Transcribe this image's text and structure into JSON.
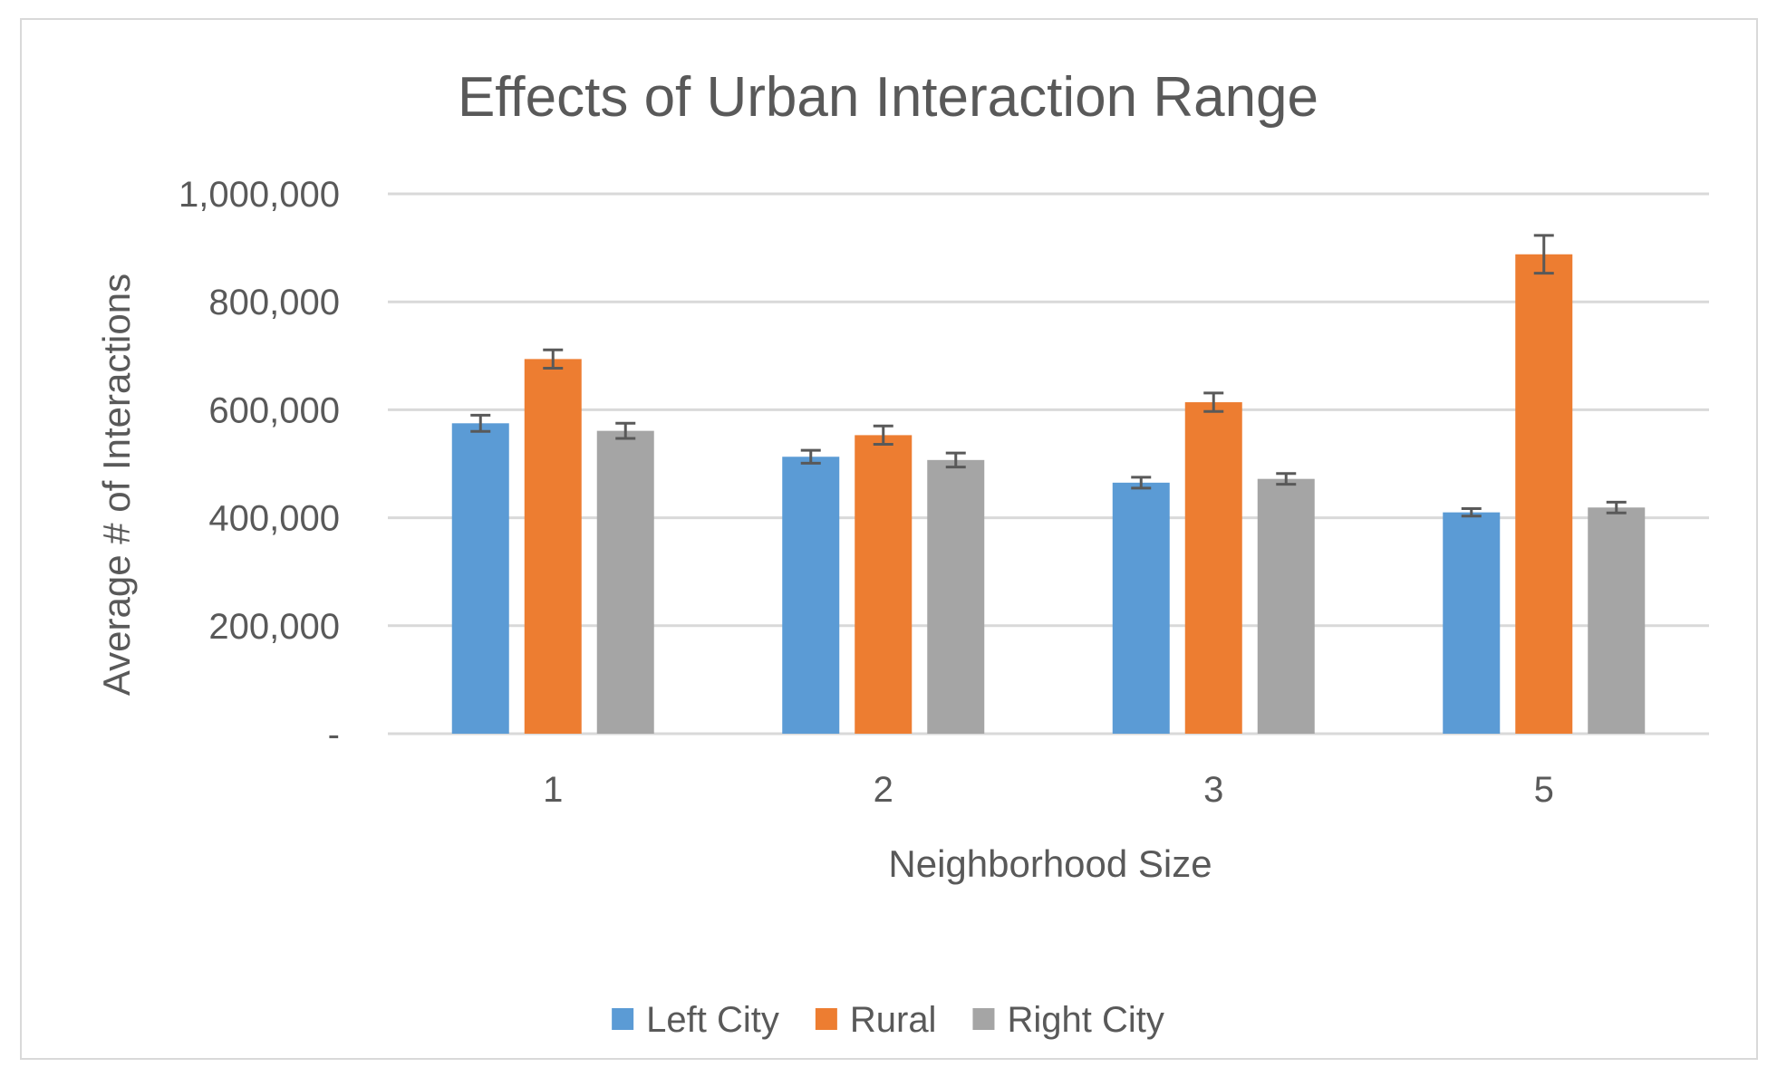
{
  "chart_data": {
    "type": "bar",
    "title": "Effects of Urban Interaction Range",
    "xlabel": "Neighborhood Size",
    "ylabel": "Average # of Interactions",
    "categories": [
      "1",
      "2",
      "3",
      "5"
    ],
    "ylim": [
      0,
      1000000
    ],
    "yticks": [
      0,
      200000,
      400000,
      600000,
      800000,
      1000000
    ],
    "ytick_labels": [
      "-",
      "200,000",
      "400,000",
      "600,000",
      "800,000",
      "1,000,000"
    ],
    "grid": true,
    "legend_position": "bottom",
    "series": [
      {
        "name": "Left City",
        "color": "#5b9bd5",
        "values": [
          575000,
          513000,
          465000,
          410000
        ],
        "errors": [
          15000,
          12000,
          10000,
          7000
        ]
      },
      {
        "name": "Rural",
        "color": "#ed7d31",
        "values": [
          694000,
          553000,
          614000,
          888000
        ],
        "errors": [
          17000,
          17000,
          17000,
          35000
        ]
      },
      {
        "name": "Right City",
        "color": "#a5a5a5",
        "values": [
          561000,
          507000,
          472000,
          419000
        ],
        "errors": [
          14000,
          13000,
          10000,
          10000
        ]
      }
    ]
  }
}
